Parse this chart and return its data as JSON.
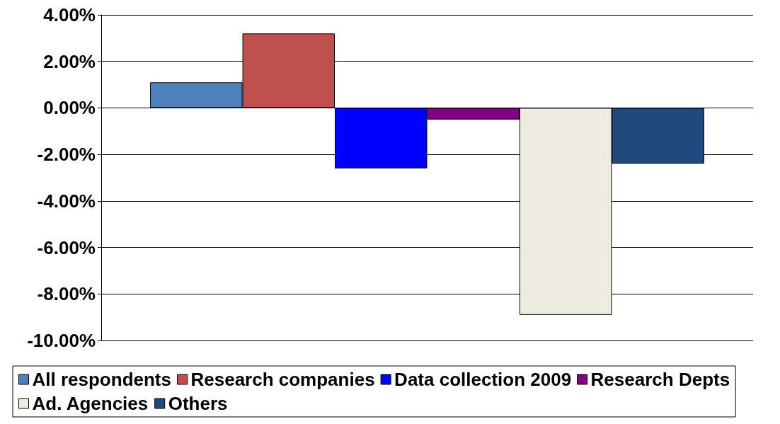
{
  "chart_data": {
    "type": "bar",
    "categories": [
      null
    ],
    "series": [
      {
        "name": "All respondents",
        "color": "#4f81bd",
        "values": [
          1.1
        ]
      },
      {
        "name": "Research companies",
        "color": "#c0504d",
        "values": [
          3.2
        ]
      },
      {
        "name": "Data collection 2009",
        "color": "#0000ff",
        "values": [
          -2.6
        ]
      },
      {
        "name": "Research Depts",
        "color": "#800080",
        "values": [
          -0.5
        ]
      },
      {
        "name": "Ad. Agencies",
        "color": "#eeece1",
        "values": [
          -8.9
        ]
      },
      {
        "name": "Others",
        "color": "#1f497d",
        "values": [
          -2.4
        ]
      }
    ],
    "ylim": [
      -10,
      4
    ],
    "yticks": [
      {
        "value": -10,
        "label": "-10.00%"
      },
      {
        "value": -8,
        "label": "-8.00%"
      },
      {
        "value": -6,
        "label": "-6.00%"
      },
      {
        "value": -4,
        "label": "-4.00%"
      },
      {
        "value": -2,
        "label": "-2.00%"
      },
      {
        "value": 0,
        "label": "0.00%"
      },
      {
        "value": 2,
        "label": "2.00%"
      },
      {
        "value": 4,
        "label": "4.00%"
      }
    ],
    "grid": "y",
    "legend": "bottom"
  }
}
